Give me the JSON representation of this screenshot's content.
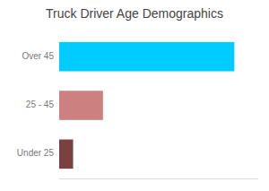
{
  "chart_data": {
    "type": "bar",
    "orientation": "horizontal",
    "title": "Truck Driver Age Demographics",
    "categories": [
      "Over 45",
      "25 - 45",
      "Under 25"
    ],
    "values": [
      88,
      22,
      7
    ],
    "colors": [
      "#00CCFF",
      "#CC8080",
      "#7B4040"
    ],
    "xlim": [
      0,
      100
    ],
    "tick_labels": "y",
    "grid": false
  }
}
